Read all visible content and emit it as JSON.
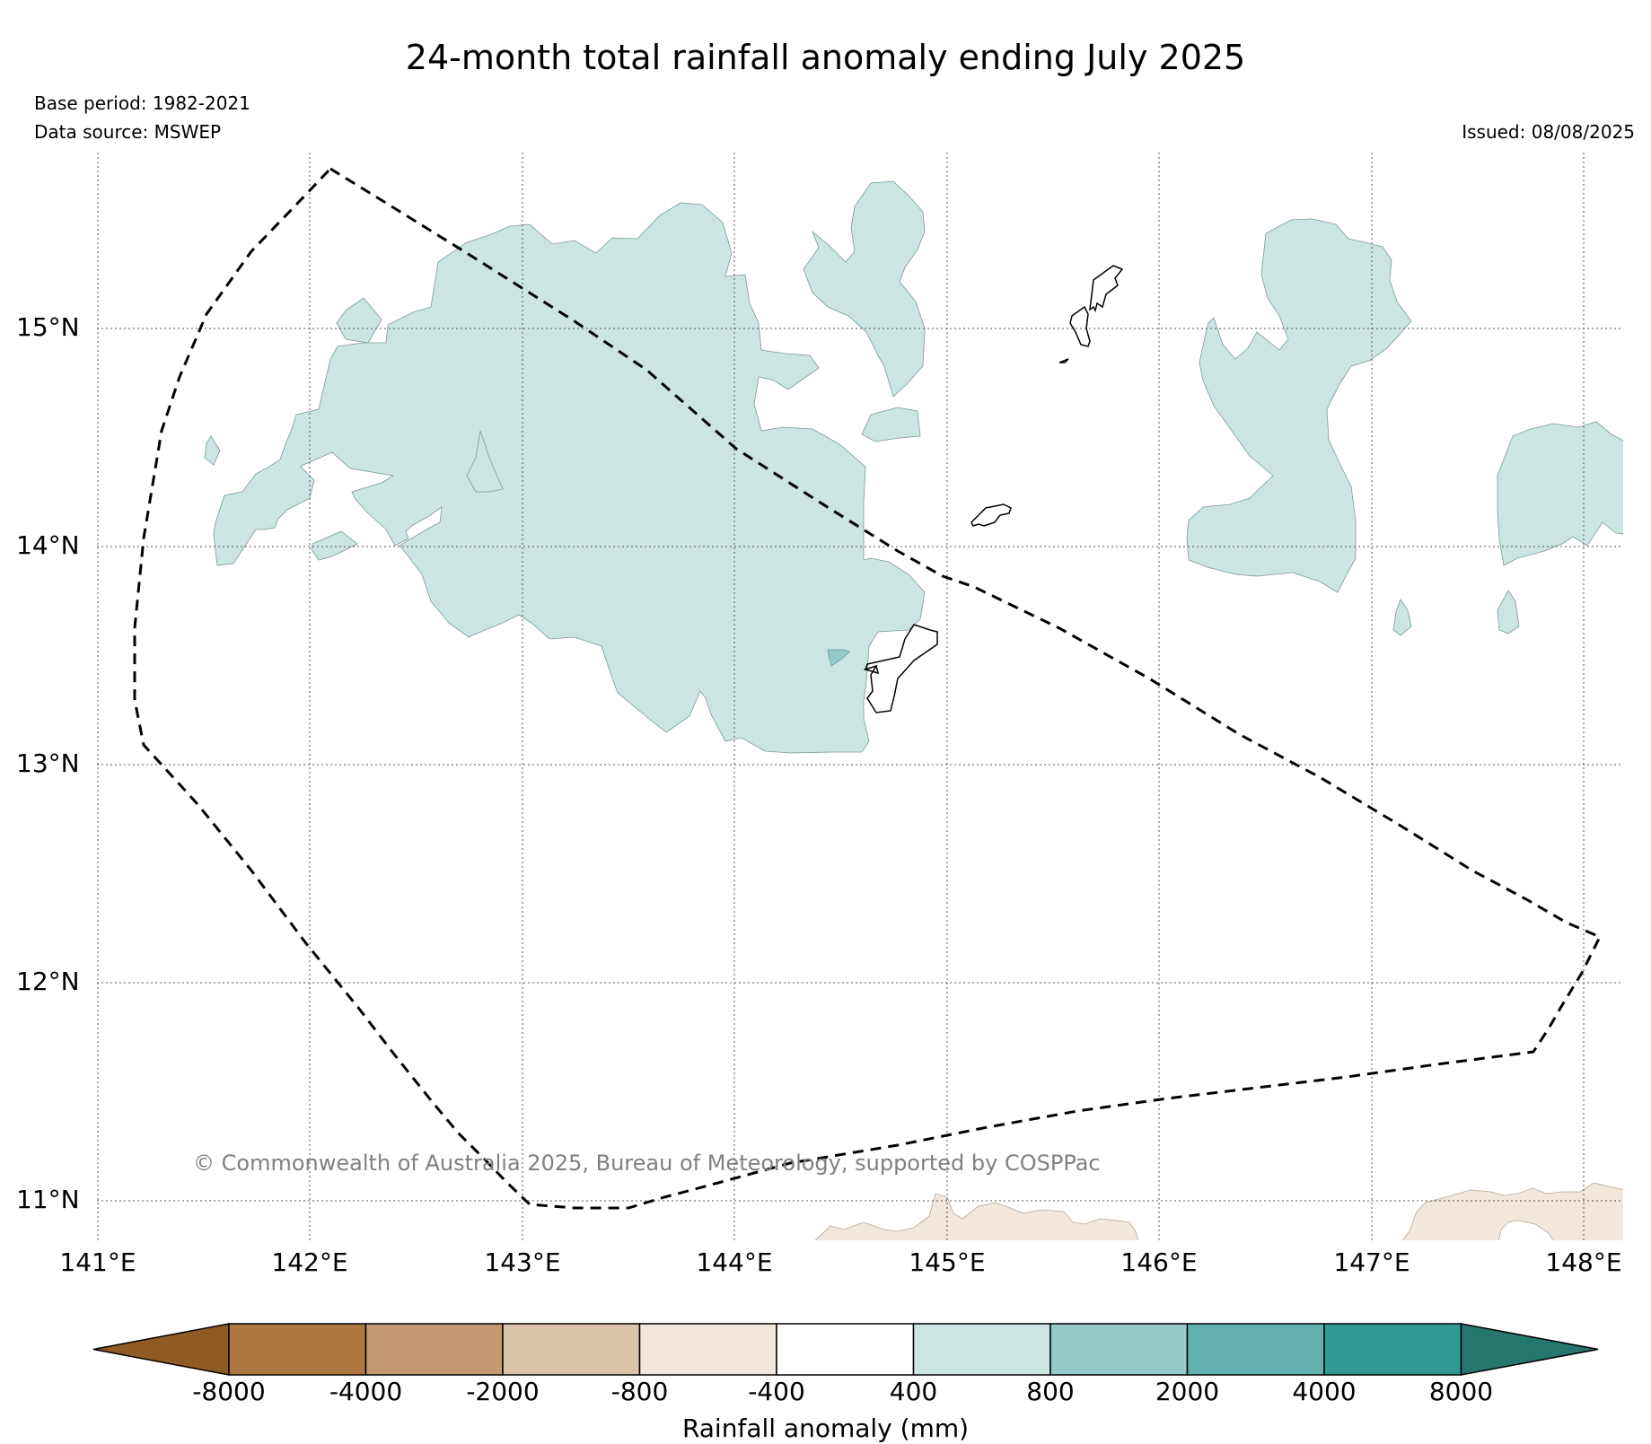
{
  "header": {
    "title": "24-month total rainfall anomaly ending July 2025",
    "base_period": "Base period: 1982-2021",
    "data_source": "Data source: MSWEP",
    "issued": "Issued: 08/08/2025"
  },
  "map": {
    "lat_labels": [
      "15°N",
      "14°N",
      "13°N",
      "12°N",
      "11°N"
    ],
    "lon_labels": [
      "141°E",
      "142°E",
      "143°E",
      "144°E",
      "145°E",
      "146°E",
      "147°E",
      "148°E"
    ],
    "copyright": "© Commonwealth of Australia 2025, Bureau of Meteorology, supported by COSPPac",
    "colors": {
      "anomaly_400_800": "#cbe5e3",
      "anomaly_800_2000": "#96cac8",
      "anomaly_neg_800_neg_400": "#f1e7dd"
    }
  },
  "legend": {
    "title": "Rainfall anomaly (mm)",
    "tick_labels": [
      "-8000",
      "-4000",
      "-2000",
      "-800",
      "-400",
      "400",
      "800",
      "2000",
      "4000",
      "8000"
    ],
    "colors": [
      "#905a24",
      "#ad773f",
      "#c39a72",
      "#dbc3aa",
      "#f1e7dd",
      "#ffffff",
      "#cbe5e3",
      "#96cac8",
      "#62b0b0",
      "#319a95",
      "#267670"
    ]
  }
}
